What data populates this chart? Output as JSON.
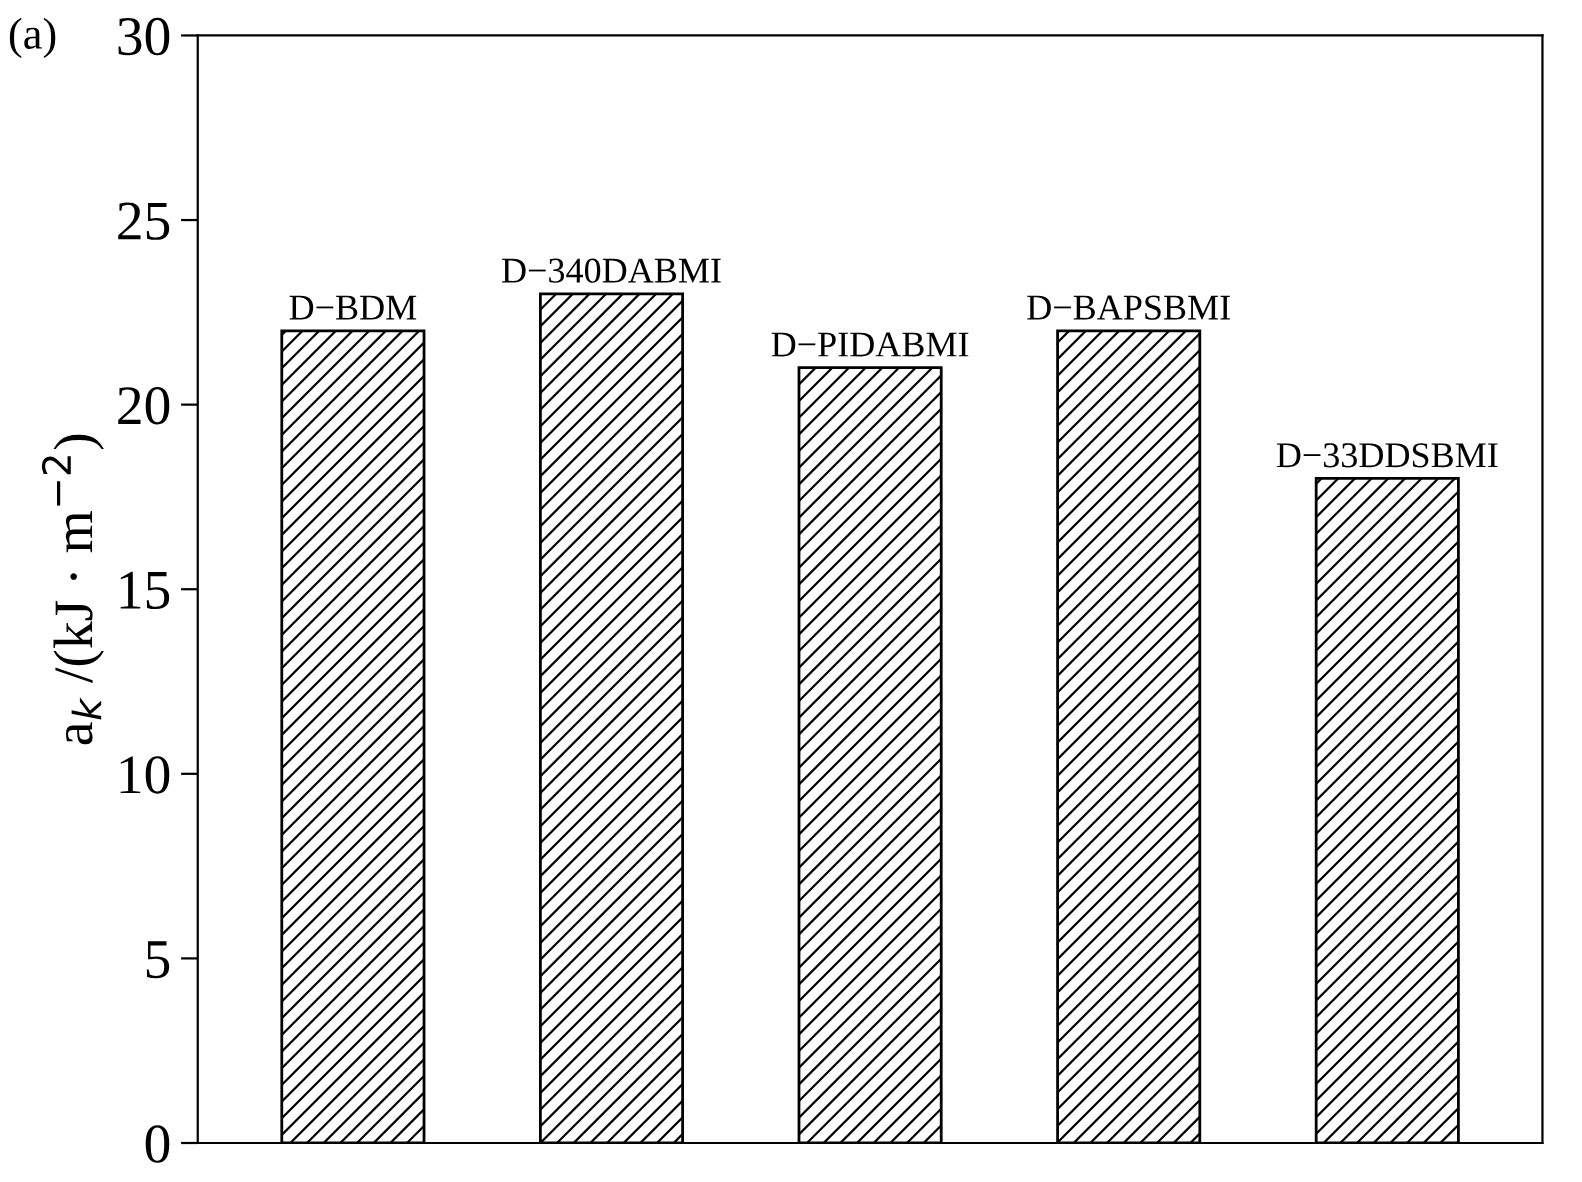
{
  "chart_data": {
    "type": "bar",
    "title": "(a)",
    "ylabel": "a$_{k}$ /(kJ · m$^{−2}$)",
    "categories": [
      "D−BDM",
      "D−340DABMI",
      "D−PIDABMI",
      "D−BAPSBMI",
      "D−33DDSBMI"
    ],
    "values": [
      22,
      23,
      21,
      22,
      18
    ],
    "color": "#000000",
    "ylim": [
      0,
      30
    ],
    "yticks": [
      0,
      5,
      10,
      15,
      20,
      25,
      30
    ],
    "grid": false
  }
}
